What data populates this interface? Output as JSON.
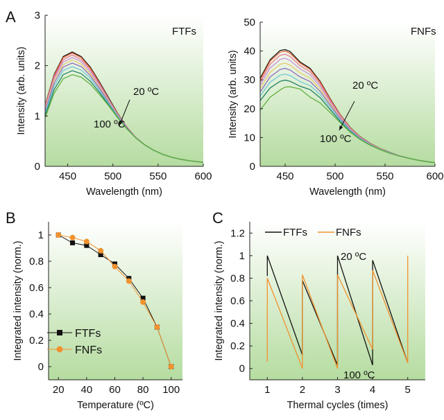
{
  "panel_letters": [
    "A",
    "B",
    "C"
  ],
  "chart_data": [
    {
      "panel": "A-left",
      "type": "line",
      "label": "FTFs",
      "xlabel": "Wavelength (nm)",
      "ylabel": "Intensity (arb. units)",
      "xlim": [
        425,
        600
      ],
      "ylim": [
        0,
        3
      ],
      "xticks": [
        450,
        500,
        550,
        600
      ],
      "yticks": [
        0,
        1,
        2,
        3
      ],
      "annotations": {
        "top": "20 ºC",
        "bottom": "100 ºC"
      },
      "colors": [
        "#111111",
        "#e8643c",
        "#e87890",
        "#c890d8",
        "#e8c870",
        "#9070c0",
        "#70c8d8",
        "#208060",
        "#60b040"
      ],
      "x": [
        425,
        435,
        445,
        455,
        465,
        475,
        485,
        495,
        505,
        515,
        525,
        535,
        545,
        555,
        565,
        575,
        585,
        595,
        600
      ],
      "series": [
        {
          "values": [
            1.21,
            1.82,
            2.18,
            2.27,
            2.18,
            1.97,
            1.68,
            1.37,
            1.06,
            0.79,
            0.58,
            0.43,
            0.32,
            0.24,
            0.18,
            0.14,
            0.11,
            0.09,
            0.08
          ]
        },
        {
          "values": [
            1.2,
            1.8,
            2.16,
            2.25,
            2.16,
            1.95,
            1.66,
            1.35,
            1.05,
            0.79,
            0.58,
            0.43,
            0.32,
            0.24,
            0.18,
            0.14,
            0.11,
            0.09,
            0.08
          ]
        },
        {
          "values": [
            1.18,
            1.77,
            2.12,
            2.21,
            2.12,
            1.92,
            1.64,
            1.34,
            1.04,
            0.78,
            0.58,
            0.43,
            0.32,
            0.24,
            0.18,
            0.14,
            0.11,
            0.09,
            0.08
          ]
        },
        {
          "values": [
            1.16,
            1.74,
            2.07,
            2.16,
            2.08,
            1.88,
            1.61,
            1.32,
            1.03,
            0.78,
            0.58,
            0.43,
            0.32,
            0.24,
            0.18,
            0.14,
            0.11,
            0.09,
            0.08
          ]
        },
        {
          "values": [
            1.13,
            1.7,
            2.02,
            2.11,
            2.03,
            1.84,
            1.58,
            1.3,
            1.02,
            0.77,
            0.57,
            0.43,
            0.32,
            0.24,
            0.18,
            0.14,
            0.11,
            0.09,
            0.08
          ]
        },
        {
          "values": [
            1.1,
            1.65,
            1.97,
            2.05,
            1.98,
            1.8,
            1.55,
            1.28,
            1.01,
            0.77,
            0.57,
            0.43,
            0.32,
            0.24,
            0.18,
            0.14,
            0.11,
            0.09,
            0.08
          ]
        },
        {
          "values": [
            1.06,
            1.59,
            1.9,
            1.98,
            1.91,
            1.75,
            1.51,
            1.26,
            1.0,
            0.76,
            0.57,
            0.43,
            0.32,
            0.24,
            0.18,
            0.14,
            0.11,
            0.09,
            0.08
          ]
        },
        {
          "values": [
            1.01,
            1.52,
            1.82,
            1.9,
            1.84,
            1.69,
            1.47,
            1.23,
            0.98,
            0.76,
            0.57,
            0.43,
            0.32,
            0.24,
            0.18,
            0.14,
            0.11,
            0.09,
            0.08
          ]
        },
        {
          "values": [
            0.96,
            1.45,
            1.74,
            1.82,
            1.77,
            1.63,
            1.43,
            1.21,
            0.97,
            0.75,
            0.57,
            0.43,
            0.32,
            0.24,
            0.18,
            0.14,
            0.11,
            0.09,
            0.08
          ]
        }
      ]
    },
    {
      "panel": "A-right",
      "type": "line",
      "label": "FNFs",
      "xlabel": "Wavelength (nm)",
      "ylabel": "Intensity (arb. units)",
      "xlim": [
        425,
        600
      ],
      "ylim": [
        0,
        50
      ],
      "xticks": [
        450,
        500,
        550,
        600
      ],
      "yticks": [
        0,
        10,
        20,
        30,
        40,
        50
      ],
      "annotations": {
        "top": "20 ºC",
        "bottom": "100 ºC"
      },
      "colors": [
        "#111111",
        "#e8643c",
        "#e87890",
        "#c890d8",
        "#e8c870",
        "#9070c0",
        "#70c8d8",
        "#208060",
        "#60b040"
      ],
      "x": [
        425,
        435,
        445,
        450,
        455,
        465,
        475,
        485,
        495,
        505,
        515,
        525,
        535,
        545,
        555,
        565,
        575,
        585,
        595,
        600
      ],
      "series": [
        {
          "values": [
            30.5,
            37.0,
            40.2,
            40.5,
            39.8,
            36.2,
            34.0,
            29.5,
            23.5,
            18.0,
            13.5,
            10.3,
            8.0,
            6.2,
            4.8,
            3.6,
            2.7,
            2.0,
            1.5,
            1.3
          ]
        },
        {
          "values": [
            30.0,
            36.5,
            39.6,
            40.0,
            39.2,
            35.8,
            33.6,
            29.2,
            23.3,
            17.9,
            13.4,
            10.2,
            7.9,
            6.1,
            4.7,
            3.6,
            2.7,
            2.0,
            1.5,
            1.3
          ]
        },
        {
          "values": [
            29.2,
            35.4,
            38.5,
            38.9,
            38.1,
            34.9,
            32.8,
            28.6,
            22.9,
            17.6,
            13.3,
            10.1,
            7.9,
            6.1,
            4.7,
            3.6,
            2.7,
            2.0,
            1.5,
            1.3
          ]
        },
        {
          "values": [
            28.2,
            34.1,
            37.1,
            37.5,
            36.7,
            33.8,
            31.8,
            27.8,
            22.4,
            17.3,
            13.1,
            10.0,
            7.8,
            6.0,
            4.7,
            3.6,
            2.7,
            2.0,
            1.5,
            1.3
          ]
        },
        {
          "values": [
            27.0,
            32.6,
            35.4,
            35.8,
            35.1,
            32.4,
            30.6,
            26.9,
            21.8,
            16.9,
            12.9,
            9.9,
            7.7,
            6.0,
            4.6,
            3.5,
            2.7,
            2.0,
            1.5,
            1.3
          ]
        },
        {
          "values": [
            25.8,
            31.0,
            33.6,
            34.0,
            33.4,
            31.0,
            29.4,
            26.0,
            21.2,
            16.6,
            12.7,
            9.8,
            7.6,
            5.9,
            4.6,
            3.5,
            2.7,
            2.0,
            1.5,
            1.3
          ]
        },
        {
          "values": [
            24.4,
            29.2,
            31.6,
            32.0,
            31.5,
            29.4,
            28.0,
            24.9,
            20.4,
            16.1,
            12.4,
            9.6,
            7.5,
            5.9,
            4.6,
            3.5,
            2.7,
            2.0,
            1.5,
            1.3
          ]
        },
        {
          "values": [
            22.8,
            27.2,
            29.5,
            29.9,
            29.5,
            27.8,
            26.6,
            23.8,
            19.7,
            15.6,
            12.1,
            9.4,
            7.4,
            5.8,
            4.5,
            3.5,
            2.7,
            2.0,
            1.5,
            1.3
          ]
        },
        {
          "values": [
            19.5,
            24.0,
            26.5,
            27.5,
            27.6,
            26.8,
            24.0,
            22.0,
            18.7,
            15.2,
            11.9,
            9.3,
            7.3,
            5.8,
            4.5,
            3.5,
            2.7,
            2.0,
            1.5,
            1.3
          ]
        }
      ]
    },
    {
      "panel": "B",
      "type": "line",
      "xlabel": "Temperature (ºC)",
      "ylabel": "Integrated intensity (norm.)",
      "xlim": [
        13,
        108
      ],
      "ylim": [
        -0.1,
        1.1
      ],
      "xticks": [
        20,
        40,
        60,
        80,
        100
      ],
      "yticks": [
        0,
        0.2,
        0.4,
        0.6,
        0.8,
        1
      ],
      "x": [
        20,
        30,
        40,
        50,
        60,
        70,
        80,
        90,
        100
      ],
      "series": [
        {
          "name": "FTFs",
          "color": "#111111",
          "marker": "square",
          "values": [
            1.0,
            0.94,
            0.92,
            0.85,
            0.78,
            0.67,
            0.52,
            0.3,
            0.0
          ]
        },
        {
          "name": "FNFs",
          "color": "#f0922e",
          "marker": "circle",
          "values": [
            1.0,
            0.98,
            0.95,
            0.88,
            0.76,
            0.65,
            0.49,
            0.3,
            0.0
          ]
        }
      ],
      "legend": "bottom-left"
    },
    {
      "panel": "C",
      "type": "line",
      "xlabel": "Thermal cycles (times)",
      "ylabel": "Integrated intensity (norm.)",
      "xlim": [
        0.5,
        5.5
      ],
      "ylim": [
        -0.1,
        1.3
      ],
      "xticks": [
        1,
        2,
        3,
        4,
        5
      ],
      "yticks": [
        0,
        0.2,
        0.4,
        0.6,
        0.8,
        1,
        1.2
      ],
      "annotations": {
        "top": "20 ºC",
        "bottom": "100 ºC"
      },
      "series": [
        {
          "name": "FTFs",
          "color": "#111111",
          "points": [
            [
              1,
              0.82
            ],
            [
              1,
              1.0
            ],
            [
              2,
              0.12
            ],
            [
              2,
              0.78
            ],
            [
              3,
              0.03
            ],
            [
              3,
              1.0
            ],
            [
              4,
              0.03
            ],
            [
              4,
              0.96
            ],
            [
              5,
              0.05
            ]
          ]
        },
        {
          "name": "FNFs",
          "color": "#f0922e",
          "points": [
            [
              1,
              0.06
            ],
            [
              1,
              0.8
            ],
            [
              2,
              0.0
            ],
            [
              2,
              0.83
            ],
            [
              3,
              0.0
            ],
            [
              3,
              0.83
            ],
            [
              4,
              0.17
            ],
            [
              4,
              0.87
            ],
            [
              5,
              0.05
            ],
            [
              5,
              1.0
            ]
          ]
        }
      ],
      "legend": "top"
    }
  ]
}
